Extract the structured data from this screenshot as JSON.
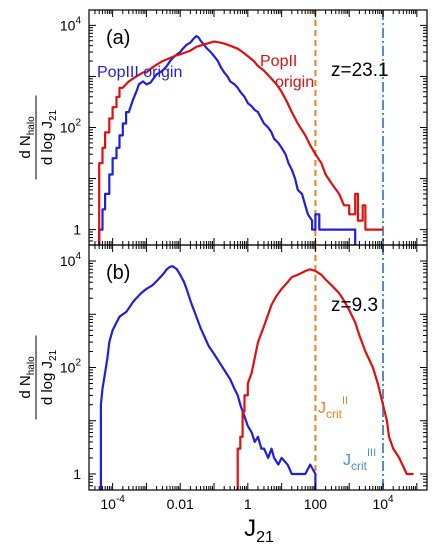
{
  "chart_data": [
    {
      "type": "line",
      "panel_label": "(a)",
      "annotation": "z=23.1",
      "xscale": "log",
      "yscale": "log",
      "xlim": [
        2e-05,
        200000
      ],
      "ylim": [
        0.5,
        20000
      ],
      "yticks": [
        {
          "value": 1,
          "label": "1"
        },
        {
          "value": 100,
          "label": "10",
          "exp": "2"
        },
        {
          "value": 10000,
          "label": "10",
          "exp": "4"
        }
      ],
      "ylabel": {
        "num": "d N",
        "num_sub": "halo",
        "den": "d log J",
        "den_sub": "21"
      },
      "series": [
        {
          "name": "PopIII origin",
          "color": "#1f1fe0",
          "points": [
            [
              4e-05,
              0.4
            ],
            [
              4e-05,
              1
            ],
            [
              5e-05,
              1
            ],
            [
              5e-05,
              2.5
            ],
            [
              6e-05,
              2.5
            ],
            [
              6e-05,
              5
            ],
            [
              8e-05,
              5
            ],
            [
              8e-05,
              12
            ],
            [
              0.0001,
              12
            ],
            [
              0.0001,
              25
            ],
            [
              0.00013,
              25
            ],
            [
              0.00013,
              40
            ],
            [
              0.00016,
              40
            ],
            [
              0.00016,
              70
            ],
            [
              0.0002,
              70
            ],
            [
              0.0002,
              120
            ],
            [
              0.00025,
              120
            ],
            [
              0.00025,
              200
            ],
            [
              0.0003,
              200
            ],
            [
              0.0004,
              350
            ],
            [
              0.0005,
              500
            ],
            [
              0.0006,
              700
            ],
            [
              0.0008,
              800
            ],
            [
              0.001,
              700
            ],
            [
              0.0013,
              750
            ],
            [
              0.0016,
              900
            ],
            [
              0.002,
              1100
            ],
            [
              0.0025,
              1200
            ],
            [
              0.003,
              1300
            ],
            [
              0.004,
              1600
            ],
            [
              0.005,
              2000
            ],
            [
              0.006,
              2300
            ],
            [
              0.008,
              2700
            ],
            [
              0.01,
              3000
            ],
            [
              0.012,
              3500
            ],
            [
              0.015,
              4100
            ],
            [
              0.02,
              4600
            ],
            [
              0.025,
              5500
            ],
            [
              0.03,
              6200
            ],
            [
              0.035,
              5800
            ],
            [
              0.04,
              5000
            ],
            [
              0.05,
              4200
            ],
            [
              0.06,
              3600
            ],
            [
              0.08,
              3000
            ],
            [
              0.1,
              2500
            ],
            [
              0.13,
              2000
            ],
            [
              0.16,
              1500
            ],
            [
              0.2,
              1200
            ],
            [
              0.25,
              1000
            ],
            [
              0.3,
              800
            ],
            [
              0.4,
              700
            ],
            [
              0.5,
              600
            ],
            [
              0.6,
              500
            ],
            [
              0.8,
              400
            ],
            [
              1,
              300
            ],
            [
              1.3,
              260
            ],
            [
              1.6,
              220
            ],
            [
              2,
              200
            ],
            [
              2.5,
              150
            ],
            [
              3,
              120
            ],
            [
              4,
              100
            ],
            [
              5,
              80
            ],
            [
              6,
              60
            ],
            [
              8,
              50
            ],
            [
              10,
              40
            ],
            [
              13,
              30
            ],
            [
              16,
              20
            ],
            [
              20,
              15
            ],
            [
              25,
              10
            ],
            [
              30,
              6
            ],
            [
              40,
              5
            ],
            [
              50,
              3
            ],
            [
              60,
              2
            ],
            [
              80,
              1.5
            ],
            [
              80,
              1
            ],
            [
              100,
              1
            ],
            [
              100,
              2
            ],
            [
              130,
              2
            ],
            [
              130,
              1
            ],
            [
              1500,
              1
            ],
            [
              1500,
              0.4
            ]
          ]
        },
        {
          "name": "PopII origin",
          "color": "#e01010",
          "points": [
            [
              4e-05,
              0.4
            ],
            [
              4e-05,
              20
            ],
            [
              5e-05,
              20
            ],
            [
              5e-05,
              40
            ],
            [
              6e-05,
              40
            ],
            [
              6e-05,
              80
            ],
            [
              8e-05,
              80
            ],
            [
              8e-05,
              150
            ],
            [
              0.0001,
              150
            ],
            [
              0.0001,
              250
            ],
            [
              0.00013,
              250
            ],
            [
              0.00013,
              400
            ],
            [
              0.00016,
              400
            ],
            [
              0.00016,
              600
            ],
            [
              0.0002,
              600
            ],
            [
              0.0003,
              800
            ],
            [
              0.0005,
              1000
            ],
            [
              0.0008,
              1200
            ],
            [
              0.001,
              1200
            ],
            [
              0.0015,
              1500
            ],
            [
              0.002,
              1700
            ],
            [
              0.003,
              2000
            ],
            [
              0.005,
              2300
            ],
            [
              0.008,
              2600
            ],
            [
              0.01,
              2700
            ],
            [
              0.02,
              3200
            ],
            [
              0.03,
              3800
            ],
            [
              0.05,
              4200
            ],
            [
              0.07,
              4500
            ],
            [
              0.1,
              4800
            ],
            [
              0.15,
              4600
            ],
            [
              0.2,
              4400
            ],
            [
              0.3,
              4000
            ],
            [
              0.5,
              3500
            ],
            [
              0.7,
              3000
            ],
            [
              1,
              2500
            ],
            [
              1.5,
              2000
            ],
            [
              2,
              1600
            ],
            [
              3,
              1300
            ],
            [
              5,
              900
            ],
            [
              7,
              700
            ],
            [
              10,
              500
            ],
            [
              15,
              300
            ],
            [
              20,
              200
            ],
            [
              30,
              120
            ],
            [
              50,
              70
            ],
            [
              70,
              45
            ],
            [
              100,
              30
            ],
            [
              150,
              20
            ],
            [
              200,
              12
            ],
            [
              300,
              8
            ],
            [
              500,
              5
            ],
            [
              700,
              3
            ],
            [
              1000,
              3
            ],
            [
              1000,
              2
            ],
            [
              1500,
              2
            ],
            [
              1500,
              5
            ],
            [
              1800,
              5
            ],
            [
              1800,
              1.5
            ],
            [
              2500,
              1.5
            ],
            [
              2500,
              3
            ],
            [
              3000,
              3
            ],
            [
              3000,
              1
            ],
            [
              10000,
              1
            ]
          ]
        }
      ],
      "vlines": [
        {
          "x": 100,
          "color": "#f08020",
          "style": "dashed"
        },
        {
          "x": 10000,
          "color": "#4a90d0",
          "style": "dashdot"
        }
      ]
    },
    {
      "type": "line",
      "panel_label": "(b)",
      "annotation": "z=9.3",
      "xscale": "log",
      "yscale": "log",
      "xlim": [
        2e-05,
        200000
      ],
      "ylim": [
        0.5,
        20000
      ],
      "xticks": [
        {
          "value": 0.0001,
          "label": "10",
          "exp": "-4"
        },
        {
          "value": 0.01,
          "label": "0.01"
        },
        {
          "value": 1,
          "label": "1"
        },
        {
          "value": 100,
          "label": "100"
        },
        {
          "value": 10000,
          "label": "10",
          "exp": "4"
        }
      ],
      "yticks": [
        {
          "value": 1,
          "label": "1"
        },
        {
          "value": 100,
          "label": "10",
          "exp": "2"
        },
        {
          "value": 10000,
          "label": "10",
          "exp": "4"
        }
      ],
      "xlabel": {
        "main": "J",
        "sub": "21"
      },
      "ylabel": {
        "num": "d N",
        "num_sub": "halo",
        "den": "d log J",
        "den_sub": "21"
      },
      "series": [
        {
          "name": "PopIII",
          "color": "#1f1fe0",
          "points": [
            [
              4.5e-05,
              0.4
            ],
            [
              4.5e-05,
              20
            ],
            [
              5e-05,
              40
            ],
            [
              6e-05,
              80
            ],
            [
              7e-05,
              150
            ],
            [
              8e-05,
              300
            ],
            [
              0.0001,
              500
            ],
            [
              0.00013,
              700
            ],
            [
              0.00016,
              900
            ],
            [
              0.0002,
              1000
            ],
            [
              0.00025,
              1100
            ],
            [
              0.0003,
              1300
            ],
            [
              0.0004,
              1700
            ],
            [
              0.0005,
              2000
            ],
            [
              0.0007,
              2500
            ],
            [
              0.001,
              3000
            ],
            [
              0.0015,
              3500
            ],
            [
              0.002,
              4200
            ],
            [
              0.003,
              5500
            ],
            [
              0.004,
              7000
            ],
            [
              0.005,
              7800
            ],
            [
              0.006,
              8000
            ],
            [
              0.008,
              7000
            ],
            [
              0.01,
              5500
            ],
            [
              0.013,
              4000
            ],
            [
              0.016,
              2800
            ],
            [
              0.02,
              1800
            ],
            [
              0.03,
              900
            ],
            [
              0.04,
              550
            ],
            [
              0.05,
              400
            ],
            [
              0.07,
              250
            ],
            [
              0.1,
              180
            ],
            [
              0.15,
              120
            ],
            [
              0.2,
              90
            ],
            [
              0.3,
              60
            ],
            [
              0.4,
              40
            ],
            [
              0.5,
              30
            ],
            [
              0.6,
              20
            ],
            [
              0.8,
              12
            ],
            [
              1,
              8
            ],
            [
              1.3,
              6
            ],
            [
              1.6,
              4
            ],
            [
              2,
              5
            ],
            [
              2.5,
              3
            ],
            [
              3,
              3
            ],
            [
              4,
              2
            ],
            [
              5,
              3
            ],
            [
              6,
              2
            ],
            [
              8,
              1.5
            ],
            [
              10,
              2
            ],
            [
              15,
              1.5
            ],
            [
              20,
              1
            ],
            [
              50,
              1
            ],
            [
              70,
              1.5
            ],
            [
              100,
              1
            ],
            [
              100,
              0.4
            ]
          ]
        },
        {
          "name": "PopII",
          "color": "#e01010",
          "points": [
            [
              0.5,
              0.4
            ],
            [
              0.5,
              3
            ],
            [
              0.6,
              3
            ],
            [
              0.6,
              5
            ],
            [
              0.7,
              5
            ],
            [
              0.7,
              15
            ],
            [
              0.8,
              15
            ],
            [
              0.8,
              30
            ],
            [
              1,
              30
            ],
            [
              1,
              50
            ],
            [
              1.3,
              80
            ],
            [
              1.6,
              150
            ],
            [
              2,
              300
            ],
            [
              3,
              600
            ],
            [
              4,
              1000
            ],
            [
              5,
              1500
            ],
            [
              7,
              2200
            ],
            [
              10,
              3000
            ],
            [
              15,
              4000
            ],
            [
              20,
              5000
            ],
            [
              30,
              5500
            ],
            [
              40,
              6000
            ],
            [
              50,
              6500
            ],
            [
              70,
              7000
            ],
            [
              100,
              6500
            ],
            [
              150,
              5500
            ],
            [
              200,
              4500
            ],
            [
              300,
              3500
            ],
            [
              500,
              2500
            ],
            [
              700,
              1800
            ],
            [
              1000,
              1200
            ],
            [
              1500,
              700
            ],
            [
              2000,
              400
            ],
            [
              3000,
              200
            ],
            [
              5000,
              100
            ],
            [
              7000,
              50
            ],
            [
              10000,
              20
            ],
            [
              13000,
              10
            ],
            [
              15000,
              5
            ],
            [
              20000,
              3
            ],
            [
              30000,
              2
            ],
            [
              50000,
              1
            ],
            [
              80000,
              1
            ]
          ]
        }
      ],
      "vlines": [
        {
          "x": 100,
          "color": "#f08020",
          "style": "dashed"
        },
        {
          "x": 10000,
          "color": "#4a90d0",
          "style": "dashdot"
        }
      ]
    }
  ],
  "labels": {
    "popIII_origin": "PopIII origin",
    "popII_line1": "PopII",
    "popII_line2": "origin",
    "jcrit_II": {
      "main": "J",
      "sub": "crit",
      "sup": "II"
    },
    "jcrit_III": {
      "main": "J",
      "sub": "crit",
      "sup": "III"
    }
  },
  "colors": {
    "popIII": "#1f1fe0",
    "popII": "#e01010",
    "jcrit_II": "#f08020",
    "jcrit_III": "#4a90d0",
    "axis": "#000000"
  }
}
